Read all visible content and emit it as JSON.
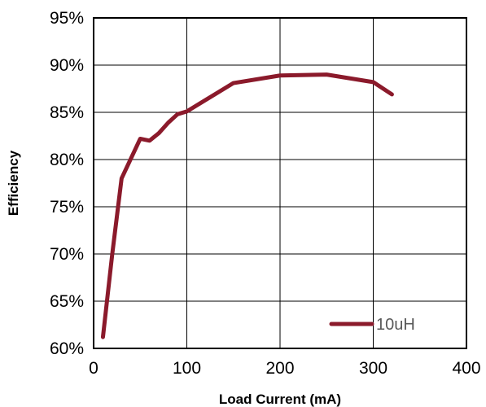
{
  "chart_data": {
    "type": "line",
    "title": "",
    "xlabel": "Load Current (mA)",
    "ylabel": "Efficiency",
    "xlim": [
      0,
      400
    ],
    "ylim": [
      60,
      95
    ],
    "xticks": [
      0,
      100,
      200,
      300,
      400
    ],
    "xtick_labels": [
      "0",
      "100",
      "200",
      "300",
      "400"
    ],
    "yticks": [
      60,
      65,
      70,
      75,
      80,
      85,
      90,
      95
    ],
    "ytick_labels": [
      "60%",
      "65%",
      "70%",
      "75%",
      "80%",
      "85%",
      "90%",
      "95%"
    ],
    "grid": true,
    "legend_position": "bottom-right",
    "series": [
      {
        "name": "10uH",
        "color": "#8b1a2b",
        "x": [
          10,
          20,
          30,
          50,
          60,
          70,
          80,
          90,
          100,
          150,
          200,
          250,
          300,
          320
        ],
        "y": [
          61.2,
          70.0,
          78.0,
          82.2,
          82.0,
          82.8,
          83.9,
          84.8,
          85.1,
          88.1,
          88.9,
          89.0,
          88.2,
          86.9
        ]
      }
    ]
  }
}
